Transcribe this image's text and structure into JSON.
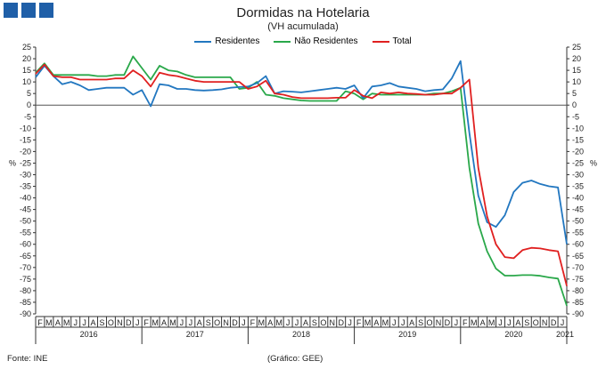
{
  "header": {
    "logo_blocks": 3,
    "logo_color": "#1f5fa8"
  },
  "footer": {
    "source": "Fonte: INE",
    "credit": "(Gráfico: GEE)"
  },
  "chart_data": {
    "type": "line",
    "title": "Dormidas na Hotelaria",
    "subtitle": "(VH acumulada)",
    "ylabel_left": "%",
    "ylabel_right": "%",
    "ylim": [
      -90,
      25
    ],
    "yticks": [
      25,
      20,
      15,
      10,
      5,
      0,
      -5,
      -10,
      -15,
      -20,
      -25,
      -30,
      -35,
      -40,
      -45,
      -50,
      -55,
      -60,
      -65,
      -70,
      -75,
      -80,
      -85,
      -90
    ],
    "grid": false,
    "legend_position": "top",
    "x": [
      "2016-01",
      "2016-02",
      "2016-03",
      "2016-04",
      "2016-05",
      "2016-06",
      "2016-07",
      "2016-08",
      "2016-09",
      "2016-10",
      "2016-11",
      "2016-12",
      "2017-01",
      "2017-02",
      "2017-03",
      "2017-04",
      "2017-05",
      "2017-06",
      "2017-07",
      "2017-08",
      "2017-09",
      "2017-10",
      "2017-11",
      "2017-12",
      "2018-01",
      "2018-02",
      "2018-03",
      "2018-04",
      "2018-05",
      "2018-06",
      "2018-07",
      "2018-08",
      "2018-09",
      "2018-10",
      "2018-11",
      "2018-12",
      "2019-01",
      "2019-02",
      "2019-03",
      "2019-04",
      "2019-05",
      "2019-06",
      "2019-07",
      "2019-08",
      "2019-09",
      "2019-10",
      "2019-11",
      "2019-12",
      "2020-01",
      "2020-02",
      "2020-03",
      "2020-04",
      "2020-05",
      "2020-06",
      "2020-07",
      "2020-08",
      "2020-09",
      "2020-10",
      "2020-11",
      "2020-12",
      "2021-01"
    ],
    "month_labels": [
      "F",
      "M",
      "A",
      "M",
      "J",
      "J",
      "A",
      "S",
      "O",
      "N",
      "D",
      "J",
      "F",
      "M",
      "A",
      "M",
      "J",
      "J",
      "A",
      "S",
      "O",
      "N",
      "D",
      "J",
      "F",
      "M",
      "A",
      "M",
      "J",
      "J",
      "A",
      "S",
      "O",
      "N",
      "D",
      "J",
      "F",
      "M",
      "A",
      "M",
      "J",
      "J",
      "A",
      "S",
      "O",
      "N",
      "D",
      "J",
      "F",
      "M",
      "A",
      "M",
      "J",
      "J",
      "A",
      "S",
      "O",
      "N",
      "D",
      "J"
    ],
    "year_labels": [
      "2016",
      "2017",
      "2018",
      "2019",
      "2020",
      "2021"
    ],
    "series": [
      {
        "name": "Residentes",
        "color": "#2277c0",
        "values": [
          12,
          17,
          12.5,
          9,
          10,
          8.5,
          6.5,
          7,
          7.5,
          7.5,
          7.5,
          4.5,
          6.5,
          -0.5,
          9,
          8.5,
          7,
          7,
          6.5,
          6.3,
          6.5,
          6.8,
          7.5,
          7.8,
          8,
          9.5,
          12.5,
          5,
          6,
          5.8,
          5.5,
          6,
          6.5,
          7,
          7.5,
          7,
          8.5,
          3,
          8,
          8.5,
          9.5,
          8,
          7.5,
          7,
          6,
          6.5,
          6.8,
          11.5,
          19,
          -12,
          -39,
          -50.5,
          -52.5,
          -47.5,
          -37.5,
          -33.5,
          -32.5,
          -34,
          -35,
          -35.5,
          -60
        ]
      },
      {
        "name": "Não Residentes",
        "color": "#2aa84a",
        "values": [
          14,
          18,
          13,
          13,
          13,
          13,
          13,
          12.5,
          12.5,
          13,
          13,
          21,
          16,
          11,
          17,
          15,
          14.5,
          13,
          12,
          12,
          12,
          12,
          12,
          7,
          7.5,
          10,
          4.5,
          4,
          3,
          2.5,
          2,
          1.8,
          1.8,
          1.8,
          1.8,
          6,
          5,
          2.5,
          5,
          4.5,
          4.5,
          4.5,
          4.5,
          4.5,
          4.5,
          5,
          5,
          6,
          7.5,
          -27,
          -51,
          -63,
          -70.5,
          -73.5,
          -73.5,
          -73.3,
          -73.3,
          -73.6,
          -74.3,
          -74.8,
          -86.5
        ]
      },
      {
        "name": "Total",
        "color": "#e02020",
        "values": [
          13.5,
          17.5,
          12.5,
          12,
          12,
          11,
          11,
          11,
          11,
          11.5,
          11.5,
          15,
          12.5,
          8,
          14,
          13,
          12.5,
          11.5,
          10.5,
          10,
          10,
          10,
          10,
          10,
          7,
          8,
          10.5,
          5,
          4.5,
          3.5,
          3,
          3,
          3,
          3,
          3.2,
          3.2,
          6.5,
          4,
          3,
          5.5,
          5,
          5.5,
          5,
          4.8,
          4.5,
          4.5,
          5,
          5,
          7.5,
          11,
          -27,
          -48,
          -60,
          -65.5,
          -66,
          -62.5,
          -61.5,
          -61.8,
          -62.5,
          -63,
          -78
        ]
      }
    ]
  }
}
